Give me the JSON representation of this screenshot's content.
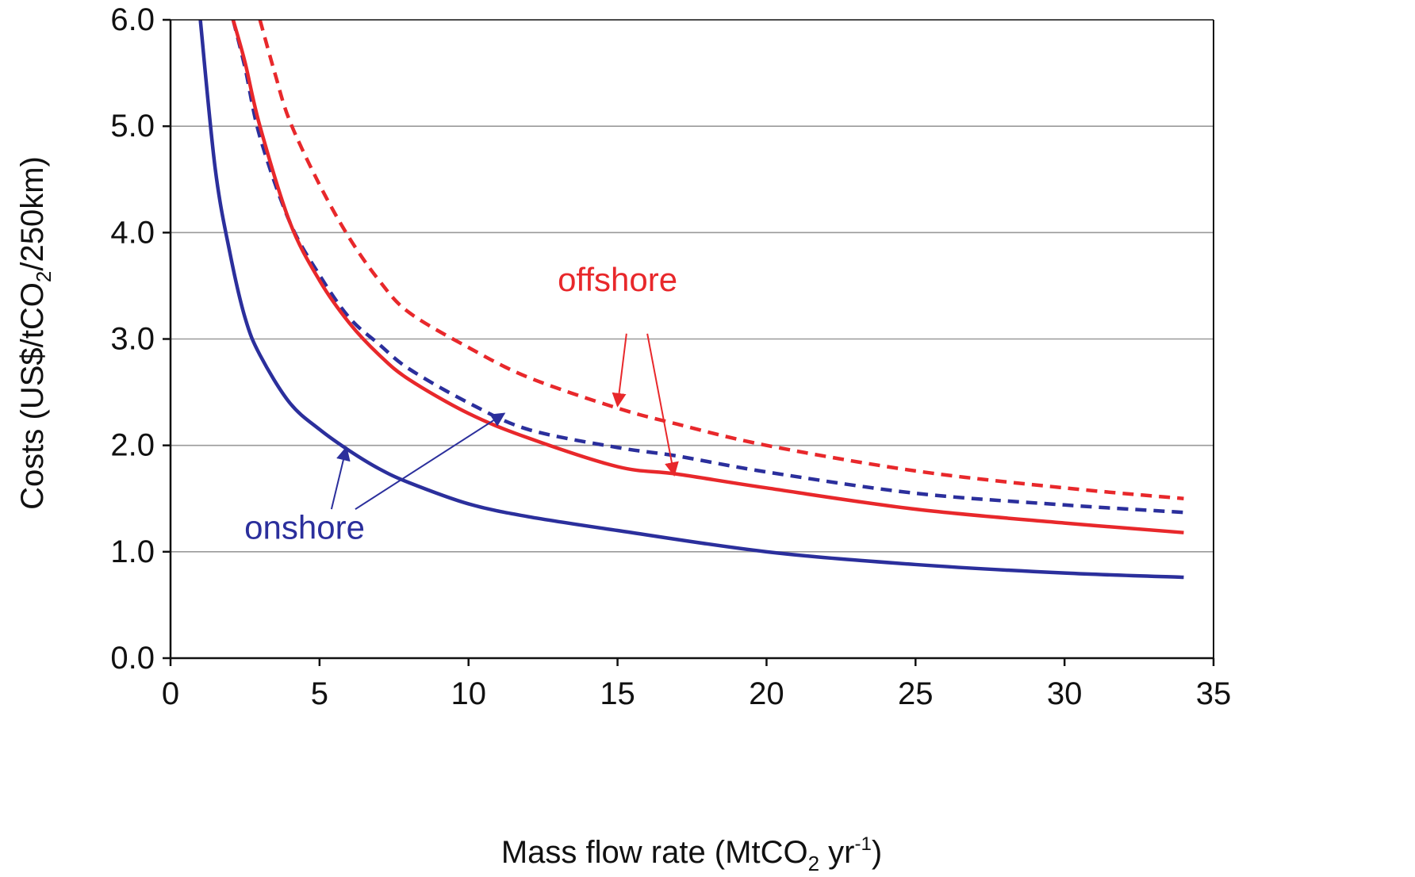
{
  "chart_data": {
    "type": "line",
    "title": "",
    "xlabel": {
      "pre": "Mass flow rate (MtCO",
      "sub": "2",
      "mid": " yr",
      "sup": "-1",
      "post": ")"
    },
    "ylabel": {
      "pre": "Costs (US$/tCO",
      "sub": "2",
      "post": "/250km)"
    },
    "xlim": [
      0,
      35
    ],
    "ylim": [
      0,
      6
    ],
    "x_ticks": [
      0,
      5,
      10,
      15,
      20,
      25,
      30,
      35
    ],
    "x_tick_labels": [
      "0",
      "5",
      "10",
      "15",
      "20",
      "25",
      "30",
      "35"
    ],
    "y_ticks": [
      0,
      1,
      2,
      3,
      4,
      5,
      6
    ],
    "y_tick_labels": [
      "0.0",
      "1.0",
      "2.0",
      "3.0",
      "4.0",
      "5.0",
      "6.0"
    ],
    "grid": "horizontal",
    "series": [
      {
        "name": "onshore",
        "color": "#2b2f9c",
        "style": "solid",
        "x": [
          1,
          1.5,
          2,
          2.5,
          3,
          4,
          5,
          6,
          7,
          8,
          10,
          12,
          15,
          20,
          25,
          30,
          34
        ],
        "y": [
          6.0,
          4.6,
          3.8,
          3.2,
          2.85,
          2.4,
          2.15,
          1.95,
          1.78,
          1.65,
          1.45,
          1.33,
          1.2,
          1.0,
          0.88,
          0.8,
          0.76
        ]
      },
      {
        "name": "onshore",
        "color": "#2b2f9c",
        "style": "dashed",
        "x": [
          2.1,
          2.5,
          3,
          4,
          5,
          6,
          7,
          8,
          10,
          12,
          15,
          17,
          20,
          25,
          30,
          34
        ],
        "y": [
          6.0,
          5.55,
          4.9,
          4.1,
          3.6,
          3.2,
          2.95,
          2.72,
          2.4,
          2.15,
          1.98,
          1.9,
          1.75,
          1.55,
          1.44,
          1.37
        ]
      },
      {
        "name": "offshore",
        "color": "#e8282b",
        "style": "solid",
        "x": [
          2.1,
          2.5,
          3,
          4,
          5,
          6,
          7,
          8,
          10,
          12,
          15,
          17,
          20,
          25,
          30,
          34
        ],
        "y": [
          6.0,
          5.6,
          5.0,
          4.1,
          3.55,
          3.15,
          2.85,
          2.62,
          2.3,
          2.07,
          1.8,
          1.73,
          1.6,
          1.4,
          1.27,
          1.18
        ]
      },
      {
        "name": "offshore",
        "color": "#e8282b",
        "style": "dashed",
        "x": [
          3,
          3.5,
          4,
          5,
          6,
          7,
          8,
          10,
          12,
          15,
          17,
          20,
          25,
          30,
          34
        ],
        "y": [
          6.0,
          5.5,
          5.05,
          4.45,
          3.95,
          3.55,
          3.25,
          2.92,
          2.64,
          2.35,
          2.2,
          2.0,
          1.76,
          1.6,
          1.5
        ]
      }
    ],
    "annotations": [
      {
        "text": "offshore",
        "color": "#e8282b",
        "at": [
          15,
          3.45
        ],
        "arrows": [
          {
            "from": [
              15.3,
              3.05
            ],
            "to": [
              15.0,
              2.37
            ]
          },
          {
            "from": [
              16.0,
              3.05
            ],
            "to": [
              16.9,
              1.72
            ]
          }
        ]
      },
      {
        "text": "onshore",
        "color": "#2b2f9c",
        "at": [
          4.5,
          1.12
        ],
        "arrows": [
          {
            "from": [
              5.4,
              1.4
            ],
            "to": [
              5.9,
              1.98
            ]
          },
          {
            "from": [
              6.2,
              1.4
            ],
            "to": [
              11.2,
              2.3
            ]
          }
        ]
      }
    ]
  }
}
